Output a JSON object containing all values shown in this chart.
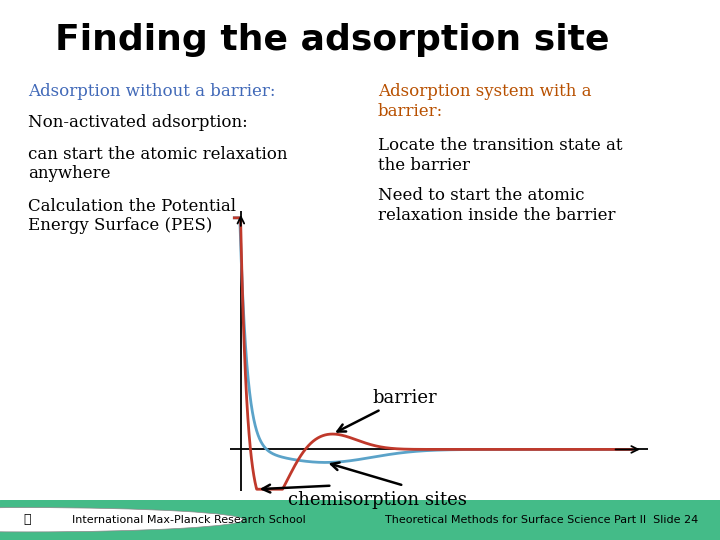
{
  "title": "Finding the adsorption site",
  "title_fontsize": 26,
  "title_fontweight": "bold",
  "title_color": "#000000",
  "bg_color": "#ffffff",
  "left_heading": "Adsorption without a barrier:",
  "left_heading_color": "#4169B8",
  "left_text1": "Non-activated adsorption:",
  "left_text2": "can start the atomic relaxation\nanywhere",
  "left_text3": "Calculation the Potential\nEnergy Surface (PES)",
  "right_heading": "Adsorption system with a\nbarrier:",
  "right_heading_color": "#B85000",
  "right_text1": "Locate the transition state at\nthe barrier",
  "right_text2": "Need to start the atomic\nrelaxation inside the barrier",
  "barrier_label": "barrier",
  "chemisorption_label": "chemisorption sites",
  "footer_left": "International Max-Planck Research School",
  "footer_right": "Theoretical Methods for Surface Science Part II  Slide 24",
  "footer_bg_top": "#aaddcc",
  "footer_bg_bot": "#22aa77",
  "curve_red_color": "#c0392b",
  "curve_blue_color": "#5ba3c9",
  "text_fontsize": 12,
  "text_fontsize_small": 8,
  "heading_fontsize": 12
}
